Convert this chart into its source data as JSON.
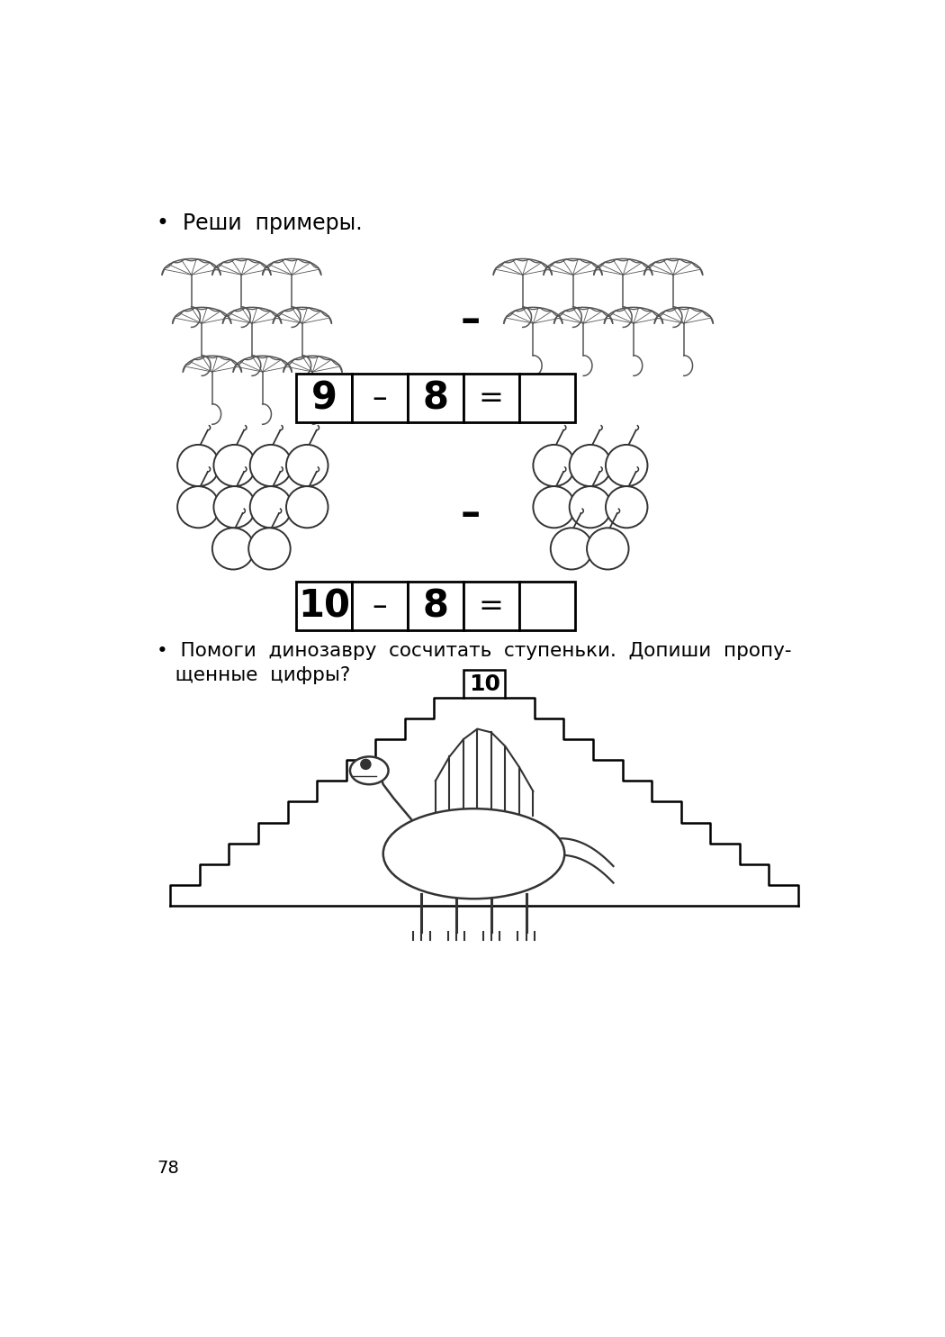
{
  "bg_color": "#ffffff",
  "bullet1_text": "•  Реши  примеры.",
  "bullet2_line1": "•  Помоги  динозавру  сосчитать  ступеньки.  Допиши  пропу-",
  "bullet2_line2": "   щенные  цифры?",
  "page_number": "78",
  "staircase_label": "10"
}
